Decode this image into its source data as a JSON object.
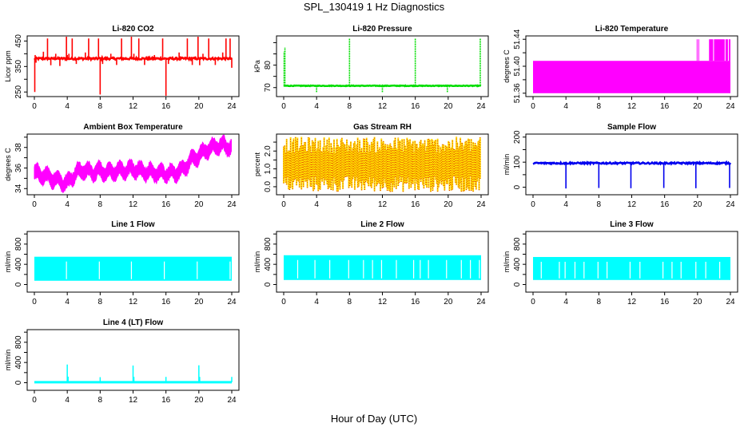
{
  "title": "SPL_130419  1 Hz Diagnostics",
  "xlabel": "Hour of Day (UTC)",
  "chart_data": [
    {
      "type": "line",
      "title": "Li-820 CO2",
      "ylabel": "Licor ppm",
      "color": "#ff0000",
      "xlim": [
        0,
        24
      ],
      "ylim": [
        232,
        470
      ],
      "xticks": [
        0,
        4,
        8,
        12,
        16,
        20,
        24
      ],
      "yticks": [
        250,
        300,
        350,
        400,
        450
      ],
      "ytick_labels": [
        "250",
        "",
        "350",
        "",
        "450"
      ],
      "baseline": 381,
      "noise": 4,
      "spikes": [
        [
          0.05,
          250
        ],
        [
          0.1,
          395
        ],
        [
          0.2,
          365
        ],
        [
          1.1,
          408
        ],
        [
          1.6,
          460
        ],
        [
          2.0,
          355
        ],
        [
          2.6,
          400
        ],
        [
          3.1,
          352
        ],
        [
          3.9,
          470
        ],
        [
          4.0,
          395
        ],
        [
          4.2,
          400
        ],
        [
          4.6,
          460
        ],
        [
          5.1,
          360
        ],
        [
          6.2,
          405
        ],
        [
          6.6,
          460
        ],
        [
          7.8,
          460
        ],
        [
          8.0,
          240
        ],
        [
          8.3,
          360
        ],
        [
          9.3,
          400
        ],
        [
          10.0,
          356
        ],
        [
          10.6,
          460
        ],
        [
          11.8,
          470
        ],
        [
          12.1,
          400
        ],
        [
          12.7,
          460
        ],
        [
          13.4,
          356
        ],
        [
          14.6,
          395
        ],
        [
          15.6,
          460
        ],
        [
          16.0,
          232
        ],
        [
          16.3,
          360
        ],
        [
          17.6,
          405
        ],
        [
          18.6,
          460
        ],
        [
          19.2,
          356
        ],
        [
          19.9,
          470
        ],
        [
          20.1,
          355
        ],
        [
          20.5,
          400
        ],
        [
          21.2,
          460
        ],
        [
          22.0,
          356
        ],
        [
          22.9,
          405
        ],
        [
          23.3,
          460
        ],
        [
          23.8,
          460
        ],
        [
          24.0,
          345
        ]
      ]
    },
    {
      "type": "line",
      "title": "Li-820 Pressure",
      "ylabel": "kPa",
      "color": "#00dd00",
      "xlim": [
        0,
        24
      ],
      "ylim": [
        66,
        93
      ],
      "xticks": [
        0,
        4,
        8,
        12,
        16,
        20,
        24
      ],
      "yticks": [
        70,
        75,
        80,
        85,
        90
      ],
      "ytick_labels": [
        "70",
        "",
        "80",
        "",
        ""
      ],
      "baseline": 70.8,
      "noise": 0.15,
      "spikes": [
        [
          0.05,
          86
        ],
        [
          0.15,
          88
        ],
        [
          4.0,
          68
        ],
        [
          8.0,
          92
        ],
        [
          12.0,
          68
        ],
        [
          16.0,
          92
        ],
        [
          19.9,
          68
        ],
        [
          23.9,
          92
        ]
      ]
    },
    {
      "type": "area",
      "title": "Li-820 Temperature",
      "ylabel": "degrees C",
      "color": "#ff00ff",
      "xlim": [
        0,
        24
      ],
      "ylim": [
        51.355,
        51.445
      ],
      "xticks": [
        0,
        4,
        8,
        12,
        16,
        20,
        24
      ],
      "yticks": [
        51.36,
        51.38,
        51.4,
        51.42,
        51.44
      ],
      "ytick_labels": [
        "51.36",
        "",
        "51.40",
        "",
        "51.44"
      ],
      "low": 51.36,
      "high": 51.408,
      "bursts_to": 51.44,
      "burst_ranges": [
        [
          19.9,
          20.0
        ],
        [
          20.1,
          20.2
        ],
        [
          21.4,
          21.9
        ],
        [
          22.0,
          23.3
        ],
        [
          23.4,
          23.7
        ],
        [
          23.8,
          24.0
        ]
      ]
    },
    {
      "type": "line",
      "title": "Ambient Box Temperature",
      "ylabel": "degrees C",
      "color": "#ff00ff",
      "xlim": [
        0,
        24
      ],
      "ylim": [
        33.4,
        39.3
      ],
      "xticks": [
        0,
        4,
        8,
        12,
        16,
        20,
        24
      ],
      "yticks": [
        34,
        35,
        36,
        37,
        38,
        39
      ],
      "ytick_labels": [
        "34",
        "",
        "36",
        "",
        "38",
        ""
      ],
      "x": [
        0,
        1,
        2,
        3,
        4,
        5,
        6,
        7,
        8,
        9,
        10,
        11,
        12,
        13,
        14,
        15,
        16,
        17,
        18,
        19,
        20,
        21,
        22,
        23,
        24
      ],
      "mean": [
        35.5,
        35.3,
        35.0,
        34.8,
        34.5,
        35.5,
        35.8,
        35.6,
        35.7,
        35.6,
        35.7,
        35.8,
        35.9,
        35.7,
        35.6,
        35.5,
        35.5,
        35.5,
        35.8,
        36.7,
        37.2,
        37.8,
        38.1,
        38.2,
        38.0
      ],
      "band": 0.9
    },
    {
      "type": "line",
      "title": "Gas Stream RH",
      "ylabel": "percent",
      "color": "#ffdd00",
      "color2": "#dd2200",
      "xlim": [
        0,
        24
      ],
      "ylim": [
        -0.45,
        2.95
      ],
      "xticks": [
        0,
        4,
        8,
        12,
        16,
        20,
        24
      ],
      "yticks": [
        0.0,
        0.5,
        1.0,
        1.5,
        2.0,
        2.5
      ],
      "ytick_labels": [
        "0.0",
        "",
        "1.0",
        "",
        "2.0",
        ""
      ],
      "mean": 1.3,
      "low_range": [
        -0.3,
        0.6
      ],
      "high_range": [
        1.9,
        2.8
      ]
    },
    {
      "type": "line",
      "title": "Sample Flow",
      "ylabel": "ml/min",
      "color": "#0000ee",
      "xlim": [
        0,
        24
      ],
      "ylim": [
        -30,
        212
      ],
      "xticks": [
        0,
        4,
        8,
        12,
        16,
        20,
        24
      ],
      "yticks": [
        0,
        50,
        100,
        150,
        200
      ],
      "ytick_labels": [
        "0",
        "",
        "100",
        "",
        "200"
      ],
      "baseline": 96,
      "noise": 3,
      "dips": [
        [
          4.0,
          -5
        ],
        [
          8.0,
          -3
        ],
        [
          11.9,
          -4
        ],
        [
          15.9,
          -3
        ],
        [
          19.8,
          -4
        ],
        [
          23.9,
          -3
        ]
      ]
    },
    {
      "type": "area",
      "title": "Line 1 Flow",
      "ylabel": "ml/min",
      "color": "#00ffff",
      "xlim": [
        0,
        24
      ],
      "ylim": [
        -150,
        1050
      ],
      "xticks": [
        0,
        4,
        8,
        12,
        16,
        20,
        24
      ],
      "yticks": [
        0,
        200,
        400,
        600,
        800,
        1000
      ],
      "ytick_labels": [
        "0",
        "",
        "400",
        "",
        "800",
        ""
      ],
      "low": 75,
      "high": 550,
      "gaps": [
        3.9,
        7.9,
        11.8,
        15.8,
        19.8,
        23.8
      ]
    },
    {
      "type": "area",
      "title": "Line 2 Flow",
      "ylabel": "ml/min",
      "color": "#00ffff",
      "xlim": [
        0,
        24
      ],
      "ylim": [
        -150,
        1050
      ],
      "xticks": [
        0,
        4,
        8,
        12,
        16,
        20,
        24
      ],
      "yticks": [
        0,
        200,
        400,
        600,
        800,
        1000
      ],
      "ytick_labels": [
        "0",
        "",
        "400",
        "",
        "800",
        ""
      ],
      "low": 90,
      "high": 580,
      "gaps": [
        1.7,
        3.8,
        5.6,
        7.9,
        9.7,
        10.8,
        11.9,
        13.7,
        15.8,
        16.6,
        17.6,
        19.8,
        21.6,
        22.7,
        23.8
      ]
    },
    {
      "type": "area",
      "title": "Line 3 Flow",
      "ylabel": "ml/min",
      "color": "#00ffff",
      "xlim": [
        0,
        24
      ],
      "ylim": [
        -150,
        1050
      ],
      "xticks": [
        0,
        4,
        8,
        12,
        16,
        20,
        24
      ],
      "yticks": [
        0,
        200,
        400,
        600,
        800,
        1000
      ],
      "ytick_labels": [
        "0",
        "",
        "400",
        "",
        "800",
        ""
      ],
      "low": 90,
      "high": 545,
      "gaps": [
        1.0,
        3.2,
        3.9,
        5.1,
        6.2,
        7.9,
        9.0,
        11.8,
        13.0,
        15.8,
        16.9,
        18.0,
        19.8,
        21.0,
        22.7
      ]
    },
    {
      "type": "line",
      "title": "Line 4 (LT) Flow",
      "ylabel": "ml/min",
      "color": "#00ffff",
      "xlim": [
        0,
        24
      ],
      "ylim": [
        -150,
        1050
      ],
      "xticks": [
        0,
        4,
        8,
        12,
        16,
        20,
        24
      ],
      "yticks": [
        0,
        200,
        400,
        600,
        800,
        1000
      ],
      "ytick_labels": [
        "0",
        "",
        "400",
        "",
        "800",
        ""
      ],
      "baseline": 10,
      "spikes": [
        [
          4.0,
          360
        ],
        [
          4.1,
          120
        ],
        [
          8.0,
          110
        ],
        [
          12.0,
          340
        ],
        [
          12.1,
          115
        ],
        [
          16.0,
          115
        ],
        [
          20.0,
          345
        ],
        [
          20.1,
          115
        ],
        [
          24.0,
          115
        ]
      ]
    }
  ]
}
